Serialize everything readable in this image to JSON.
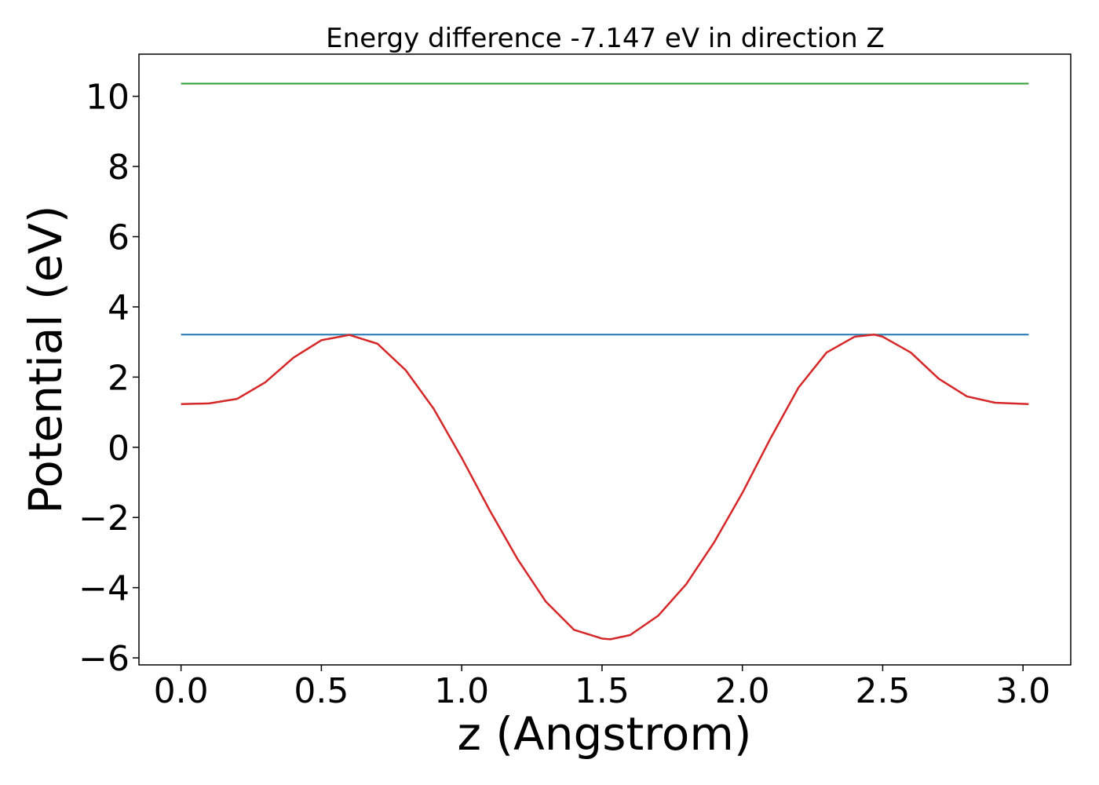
{
  "chart_data": {
    "type": "line",
    "title": "Energy difference -7.147 eV in direction Z",
    "xlabel": "z (Angstrom)",
    "ylabel": "Potential (eV)",
    "xlim": [
      -0.15,
      3.17
    ],
    "ylim": [
      -6.2,
      11.2
    ],
    "xticks": [
      0.0,
      0.5,
      1.0,
      1.5,
      2.0,
      2.5,
      3.0
    ],
    "xtick_labels": [
      "0.0",
      "0.5",
      "1.0",
      "1.5",
      "2.0",
      "2.5",
      "3.0"
    ],
    "yticks": [
      -6,
      -4,
      -2,
      0,
      2,
      4,
      6,
      8,
      10
    ],
    "ytick_labels": [
      "−6",
      "−4",
      "−2",
      "0",
      "2",
      "4",
      "6",
      "8",
      "10"
    ],
    "grid": false,
    "series": [
      {
        "color": "#d62728",
        "x": [
          0.0,
          0.1,
          0.2,
          0.3,
          0.4,
          0.5,
          0.6,
          0.7,
          0.8,
          0.9,
          1.0,
          1.1,
          1.2,
          1.3,
          1.4,
          1.5,
          1.53,
          1.6,
          1.7,
          1.8,
          1.9,
          2.0,
          2.1,
          2.2,
          2.3,
          2.4,
          2.47,
          2.5,
          2.6,
          2.7,
          2.8,
          2.9,
          3.02
        ],
        "y": [
          1.23,
          1.25,
          1.38,
          1.85,
          2.55,
          3.05,
          3.2,
          2.95,
          2.2,
          1.1,
          -0.3,
          -1.8,
          -3.2,
          -4.4,
          -5.2,
          -5.45,
          -5.47,
          -5.35,
          -4.8,
          -3.9,
          -2.7,
          -1.3,
          0.25,
          1.7,
          2.7,
          3.15,
          3.21,
          3.15,
          2.7,
          1.95,
          1.45,
          1.27,
          1.23
        ]
      },
      {
        "color": "#1f77b4",
        "x": [
          0.0,
          3.02
        ],
        "y": [
          3.21,
          3.21
        ]
      },
      {
        "color": "#2ca02c",
        "x": [
          0.0,
          3.02
        ],
        "y": [
          10.36,
          10.36
        ]
      }
    ]
  }
}
